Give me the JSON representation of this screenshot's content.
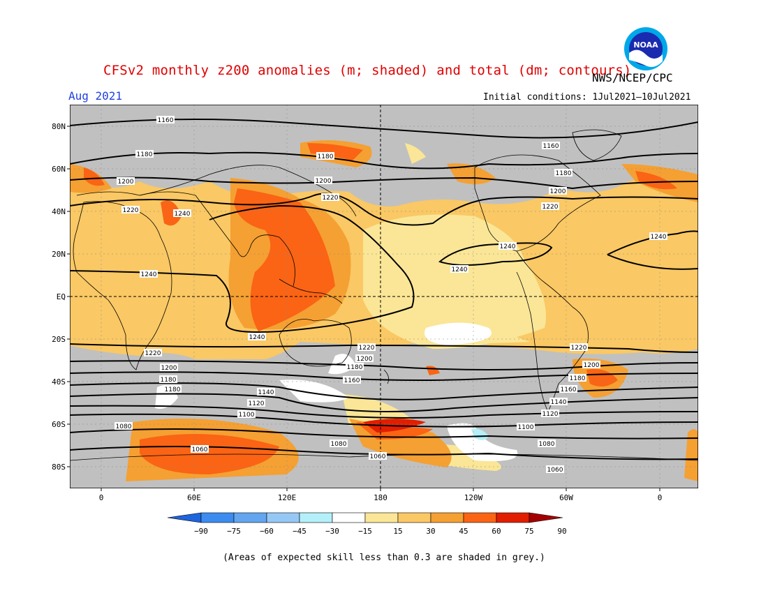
{
  "title": "CFSv2 monthly z200 anomalies (m; shaded) and total (dm; contours)",
  "month": "Aug 2021",
  "agency": "NWS/NCEP/CPC",
  "initial_conditions": "Initial conditions: 1Jul2021–10Jul2021",
  "logo_text": "NOAA",
  "caption": "(Areas of expected skill less than 0.3 are shaded in grey.)",
  "map": {
    "lat_labels": [
      "80N",
      "60N",
      "40N",
      "20N",
      "EQ",
      "20S",
      "40S",
      "60S",
      "80S"
    ],
    "lon_labels": [
      "0",
      "60E",
      "120E",
      "180",
      "120W",
      "60W",
      "0"
    ],
    "contour_labels": [
      "1060",
      "1080",
      "1100",
      "1120",
      "1140",
      "1160",
      "1180",
      "1200",
      "1220",
      "1240"
    ]
  },
  "colorbar": {
    "ticks": [
      "−90",
      "−75",
      "−60",
      "−45",
      "−30",
      "−15",
      "15",
      "30",
      "45",
      "60",
      "75",
      "90"
    ],
    "colors": [
      "#1e64dc",
      "#3c8cf0",
      "#64a5f0",
      "#96c8f5",
      "#b4f0fa",
      "#ffffff",
      "#fae696",
      "#fac864",
      "#f5a032",
      "#fa6414",
      "#e11e00",
      "#a50000"
    ]
  },
  "colors": {
    "title": "#e00000",
    "month": "#2040e0",
    "grey_mask": "#c0c0c0",
    "ocean_bg": "#fac864"
  }
}
